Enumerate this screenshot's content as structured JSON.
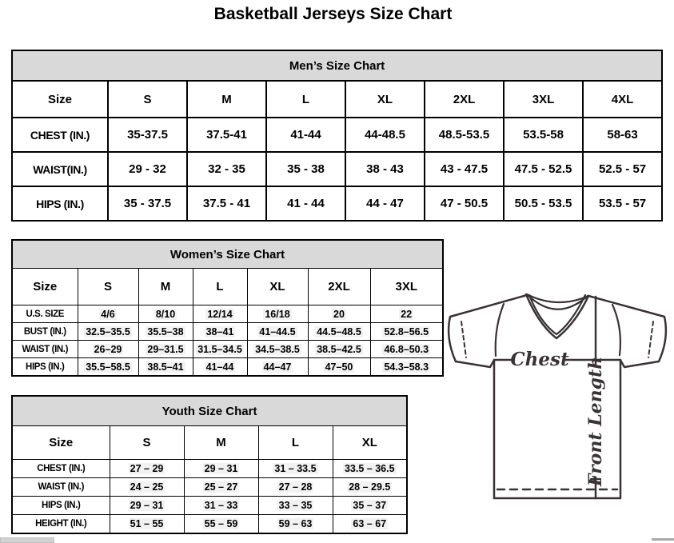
{
  "title": "Basketball Jerseys Size Chart",
  "tables": {
    "men": {
      "caption": "Men’s Size Chart",
      "columns": [
        "Size",
        "S",
        "M",
        "L",
        "XL",
        "2XL",
        "3XL",
        "4XL"
      ],
      "rows": [
        {
          "label": "CHEST (IN.)",
          "values": [
            "35-37.5",
            "37.5-41",
            "41-44",
            "44-48.5",
            "48.5-53.5",
            "53.5-58",
            "58-63"
          ]
        },
        {
          "label": "WAIST(IN.)",
          "values": [
            "29 - 32",
            "32 - 35",
            "35 - 38",
            "38 - 43",
            "43 - 47.5",
            "47.5 - 52.5",
            "52.5 - 57"
          ]
        },
        {
          "label": "HIPS (IN.)",
          "values": [
            "35 - 37.5",
            "37.5 - 41",
            "41 - 44",
            "44 - 47",
            "47 - 50.5",
            "50.5 - 53.5",
            "53.5 - 57"
          ]
        }
      ]
    },
    "women": {
      "caption": "Women’s Size Chart",
      "columns": [
        "Size",
        "S",
        "M",
        "L",
        "XL",
        "2XL",
        "3XL"
      ],
      "rows": [
        {
          "label": "U.S. SIZE",
          "values": [
            "4/6",
            "8/10",
            "12/14",
            "16/18",
            "20",
            "22"
          ]
        },
        {
          "label": "BUST (IN.)",
          "values": [
            "32.5–35.5",
            "35.5–38",
            "38–41",
            "41–44.5",
            "44.5–48.5",
            "52.8–56.5"
          ]
        },
        {
          "label": "WAIST (IN.)",
          "values": [
            "26–29",
            "29–31.5",
            "31.5–34.5",
            "34.5–38.5",
            "38.5–42.5",
            "46.8–50.3"
          ]
        },
        {
          "label": "HIPS (IN.)",
          "values": [
            "35.5–58.5",
            "38.5–41",
            "41–44",
            "44–47",
            "47–50",
            "54.3–58.3"
          ]
        }
      ]
    },
    "youth": {
      "caption": "Youth Size Chart",
      "columns": [
        "Size",
        "S",
        "M",
        "L",
        "XL"
      ],
      "rows": [
        {
          "label": "CHEST (IN.)",
          "values": [
            "27 – 29",
            "29 – 31",
            "31 – 33.5",
            "33.5 – 36.5"
          ]
        },
        {
          "label": "WAIST (IN.)",
          "values": [
            "24 – 25",
            "25 – 27",
            "27 – 28",
            "28 – 29.5"
          ]
        },
        {
          "label": "HIPS (IN.)",
          "values": [
            "29 – 31",
            "31 – 33",
            "33 – 35",
            "35 – 37"
          ]
        },
        {
          "label": "HEIGHT (IN.)",
          "values": [
            "51 – 55",
            "55 – 59",
            "59 – 63",
            "63 – 67"
          ]
        }
      ]
    }
  },
  "diagram": {
    "chest_label": "Chest",
    "front_length_label": "Front Length"
  },
  "colors": {
    "table_header_bg": "#d9d9d9",
    "table_border": "#000000",
    "diagram_stroke": "#3a3235",
    "scrollbar_thumb": "#d2d2d2"
  }
}
